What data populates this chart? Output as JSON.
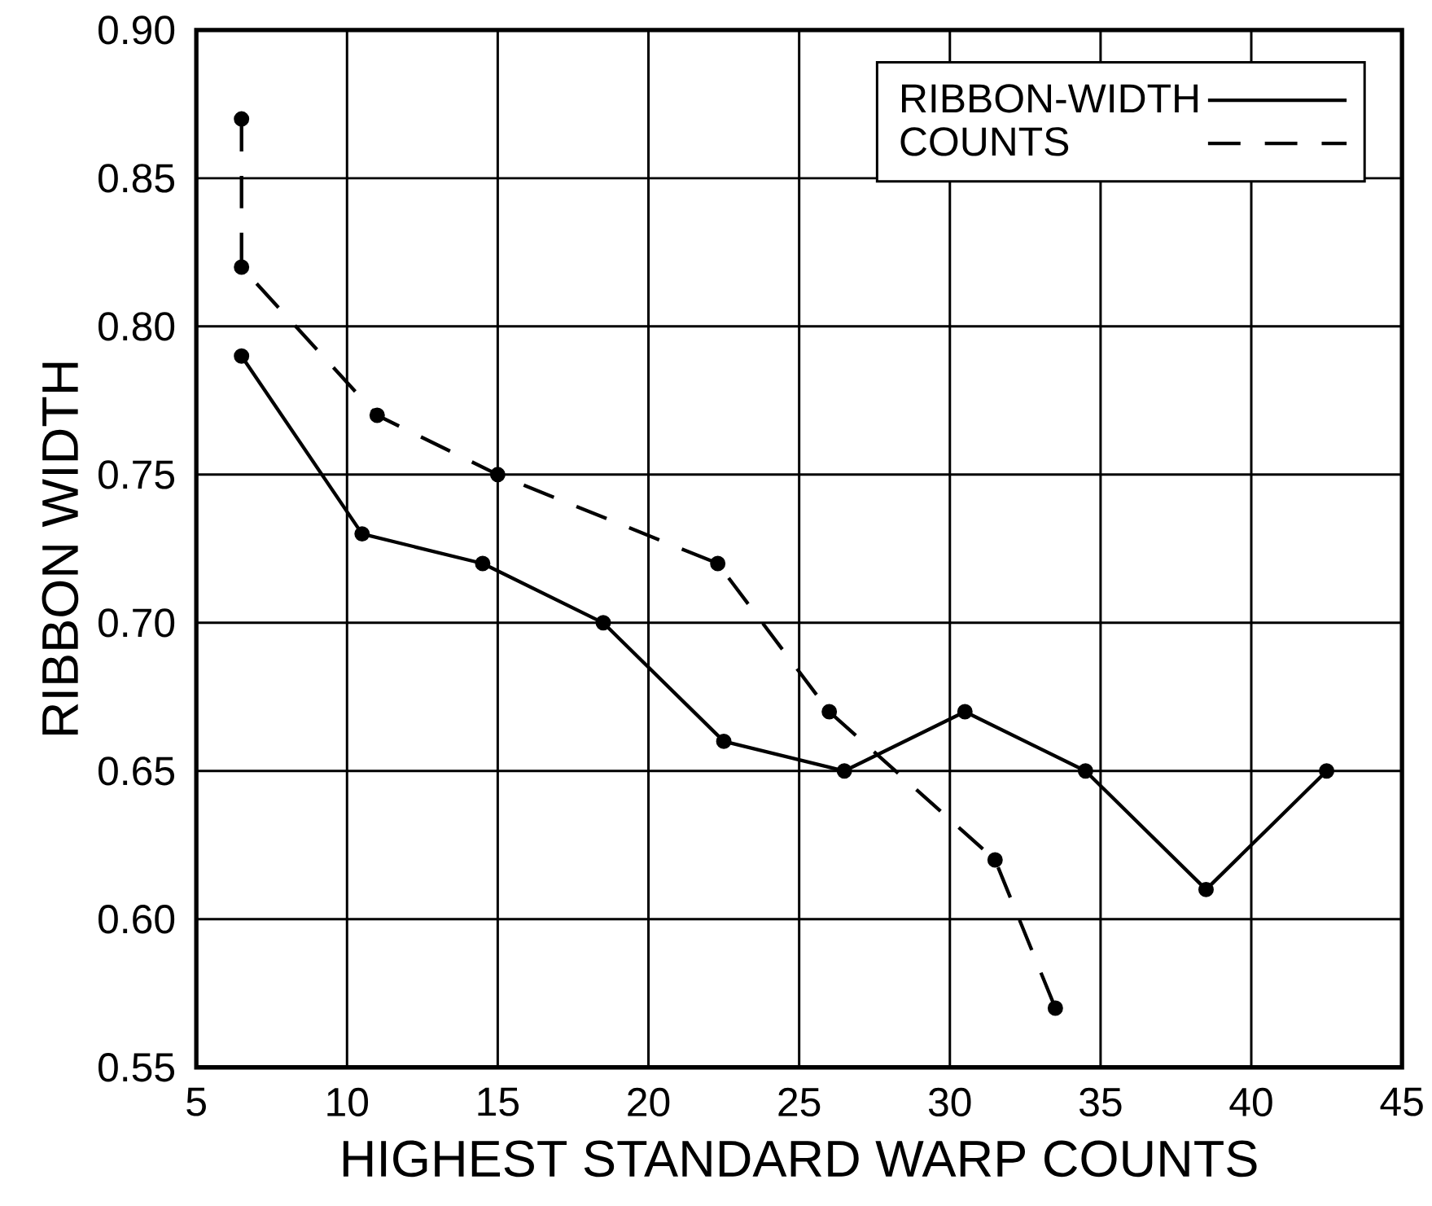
{
  "chart_data": {
    "type": "line",
    "xlabel": "HIGHEST STANDARD WARP COUNTS",
    "ylabel": "RIBBON WIDTH",
    "xlim": [
      5,
      45
    ],
    "xticks": [
      5,
      10,
      15,
      20,
      25,
      30,
      35,
      40,
      45
    ],
    "ylim": [
      0.55,
      0.9
    ],
    "yticks": [
      {
        "value": 0.55,
        "label": "0.55"
      },
      {
        "value": 0.6,
        "label": "0.60"
      },
      {
        "value": 0.65,
        "label": "0.65"
      },
      {
        "value": 0.7,
        "label": "0.70"
      },
      {
        "value": 0.75,
        "label": "0.75"
      },
      {
        "value": 0.8,
        "label": "0.80"
      },
      {
        "value": 0.85,
        "label": "0.85"
      },
      {
        "value": 0.9,
        "label": "0.90"
      }
    ],
    "grid": true,
    "legend": "top right",
    "marker": "circle",
    "series": [
      {
        "name": "RIBBON-WIDTH",
        "color": "#000000",
        "line_style": "solid",
        "x": [
          6.5,
          10.5,
          14.5,
          18.5,
          22.5,
          26.5,
          30.5,
          34.5,
          38.5,
          42.5
        ],
        "values": [
          0.79,
          0.73,
          0.72,
          0.7,
          0.66,
          0.65,
          0.67,
          0.65,
          0.61,
          0.65
        ]
      },
      {
        "name": "COUNTS",
        "color": "#000000",
        "line_style": "dashed",
        "x": [
          6.5,
          6.5,
          11,
          15,
          22.3,
          26,
          31.5,
          33.5
        ],
        "values": [
          0.87,
          0.82,
          0.77,
          0.75,
          0.72,
          0.67,
          0.62,
          0.57
        ]
      }
    ]
  }
}
